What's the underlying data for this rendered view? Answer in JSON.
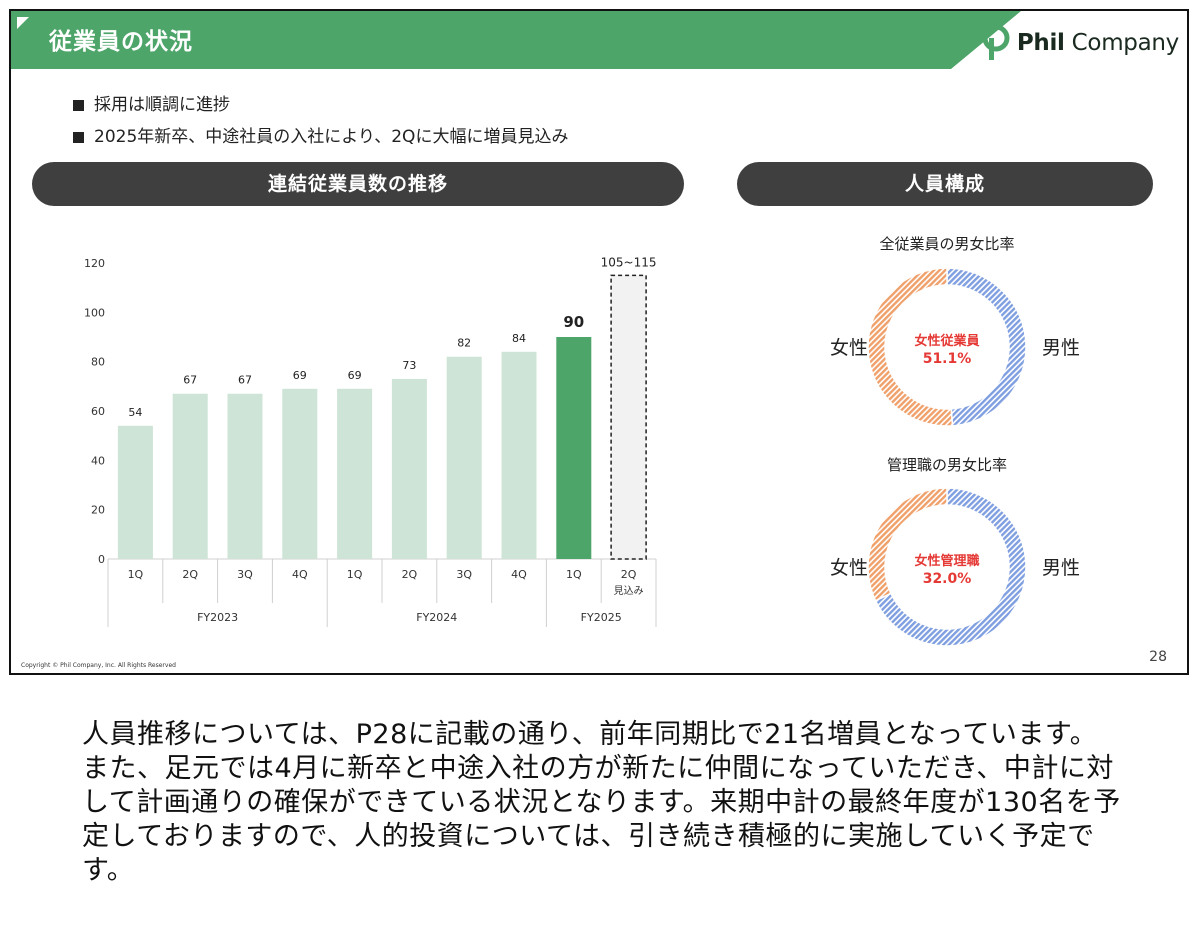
{
  "header": {
    "title": "従業員の状況",
    "logo_text_bold": "Phil",
    "logo_text_regular": " Company",
    "accent": "#4ea56a"
  },
  "bullets": [
    "採用は順調に進捗",
    "2025年新卒、中途社員の入社により、2Qに大幅に増員見込み"
  ],
  "sections": {
    "left_title": "連結従業員数の推移",
    "right_title": "人員構成"
  },
  "chart_data": [
    {
      "type": "bar",
      "title": "連結従業員数の推移",
      "categories": [
        "1Q",
        "2Q",
        "3Q",
        "4Q",
        "1Q",
        "2Q",
        "3Q",
        "4Q",
        "1Q",
        "2Q"
      ],
      "category_sublabels": [
        "",
        "",
        "",
        "",
        "",
        "",
        "",
        "",
        "",
        "見込み"
      ],
      "groups": [
        {
          "label": "FY2023",
          "span": 4
        },
        {
          "label": "FY2024",
          "span": 4
        },
        {
          "label": "FY2025",
          "span": 2
        }
      ],
      "values": [
        54,
        67,
        67,
        69,
        69,
        73,
        82,
        84,
        90,
        115
      ],
      "data_labels": [
        "54",
        "67",
        "67",
        "69",
        "69",
        "73",
        "82",
        "84",
        "90",
        "105~115"
      ],
      "forecast_range": [
        105,
        115
      ],
      "ylim": [
        0,
        120
      ],
      "yticks": [
        0,
        20,
        40,
        60,
        80,
        100,
        120
      ],
      "colors": {
        "past": "#cde4d6",
        "current": "#4ea56a",
        "forecast": "#f2f2f2"
      },
      "xlabel": "",
      "ylabel": ""
    },
    {
      "type": "pie",
      "title": "全従業員の男女比率",
      "labels": [
        "女性",
        "男性"
      ],
      "values": [
        51.1,
        48.9
      ],
      "center_label": "女性従業員",
      "center_value": "51.1%",
      "colors": {
        "female": "#f0a06a",
        "male": "#7f9fe0"
      }
    },
    {
      "type": "pie",
      "title": "管理職の男女比率",
      "labels": [
        "女性",
        "男性"
      ],
      "values": [
        32.0,
        68.0
      ],
      "center_label": "女性管理職",
      "center_value": "32.0%",
      "colors": {
        "female": "#f0a06a",
        "male": "#7f9fe0"
      }
    }
  ],
  "footer": {
    "copyright": "Copyright © Phil Company, Inc. All Rights Reserved",
    "page_number": "28"
  },
  "narration": "人員推移については、P28に記載の通り、前年同期比で21名増員となっています。また、足元では4月に新卒と中途入社の方が新たに仲間になっていただき、中計に対して計画通りの確保ができている状況となります。来期中計の最終年度が130名を予定しておりますので、人的投資については、引き続き積極的に実施していく予定です。"
}
